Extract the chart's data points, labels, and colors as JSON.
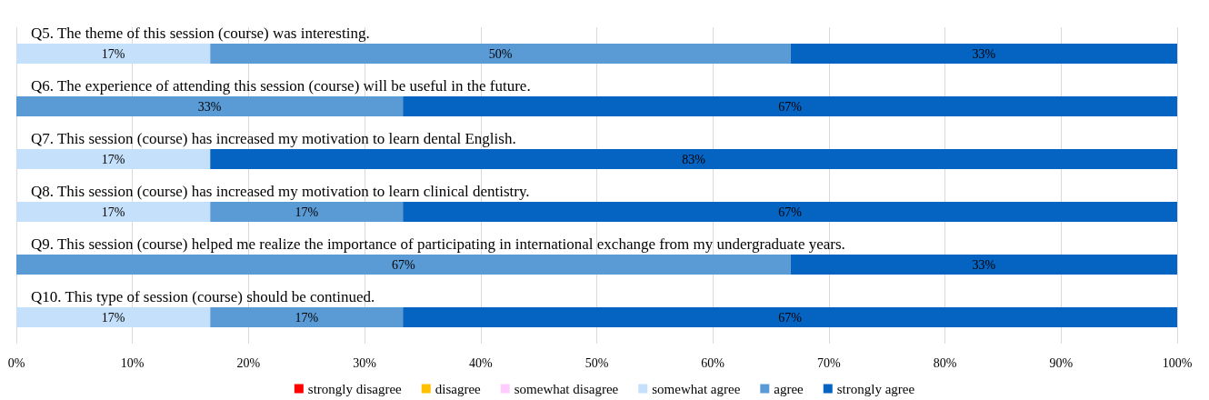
{
  "chart_data": {
    "type": "bar",
    "orientation": "horizontal",
    "stacked": true,
    "categories": [
      "Q5. The theme of this session (course) was interesting.",
      "Q6. The experience of attending this session (course) will be useful in the future.",
      "Q7. This session (course) has increased my motivation to learn dental English.",
      "Q8. This session (course) has increased my motivation to learn clinical dentistry.",
      "Q9. This session (course) helped me realize the importance of participating in international exchange from my undergraduate years.",
      "Q10. This type of session (course) should be continued."
    ],
    "series": [
      {
        "name": "strongly disagree",
        "color": "#ff0000",
        "values": [
          null,
          null,
          null,
          null,
          null,
          null
        ]
      },
      {
        "name": "disagree",
        "color": "#ffc000",
        "values": [
          null,
          null,
          null,
          null,
          null,
          null
        ]
      },
      {
        "name": "somewhat disagree",
        "color": "#ffccff",
        "values": [
          null,
          null,
          null,
          null,
          null,
          null
        ]
      },
      {
        "name": "somewhat agree",
        "color": "#c5e0fa",
        "values": [
          16.7,
          null,
          16.7,
          16.7,
          null,
          16.7
        ],
        "value_labels": [
          "17%",
          null,
          "17%",
          "17%",
          null,
          "17%"
        ]
      },
      {
        "name": "agree",
        "color": "#5b9bd5",
        "values": [
          50,
          33.3,
          null,
          16.6,
          66.7,
          16.6
        ],
        "value_labels": [
          "50%",
          "33%",
          null,
          "17%",
          "67%",
          "17%"
        ]
      },
      {
        "name": "strongly agree",
        "color": "#0563c1",
        "values": [
          33.3,
          66.7,
          83.3,
          66.7,
          33.3,
          66.7
        ],
        "value_labels": [
          "33%",
          "67%",
          "83%",
          "67%",
          "33%",
          "67%"
        ]
      }
    ],
    "xlim": [
      0,
      100
    ],
    "xticks": [
      {
        "value": 0,
        "label": "0%"
      },
      {
        "value": 10,
        "label": "10%"
      },
      {
        "value": 20,
        "label": "20%"
      },
      {
        "value": 30,
        "label": "30%"
      },
      {
        "value": 40,
        "label": "40%"
      },
      {
        "value": 50,
        "label": "50%"
      },
      {
        "value": 60,
        "label": "60%"
      },
      {
        "value": 70,
        "label": "70%"
      },
      {
        "value": 80,
        "label": "80%"
      },
      {
        "value": 90,
        "label": "90%"
      },
      {
        "value": 100,
        "label": "100%"
      }
    ],
    "grid": "x",
    "legend": "bottom"
  }
}
